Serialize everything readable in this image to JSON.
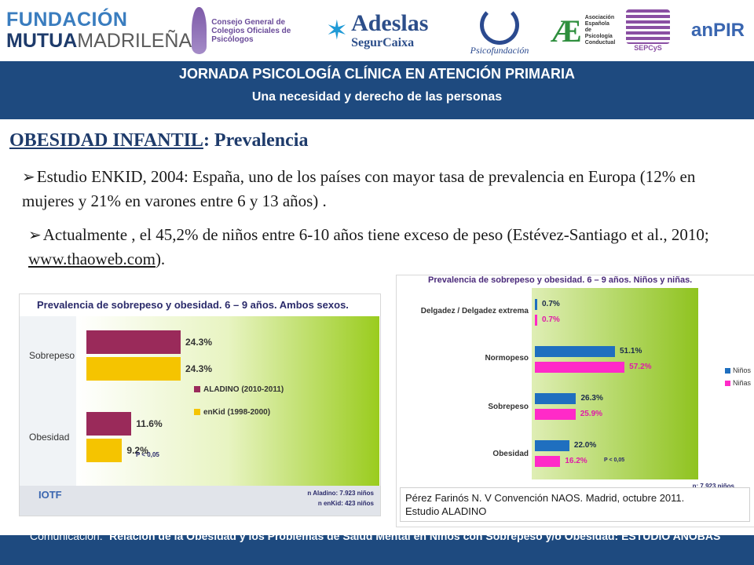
{
  "logos": {
    "fmm_line1": "FUNDACIÓN",
    "fmm_line2a": "MUTUA",
    "fmm_line2b": "MADRILEÑA",
    "cgcop": "Consejo General de Colegios Oficiales de Psicólogos",
    "adeslas_1": "Adeslas",
    "adeslas_2": "SegurCaixa",
    "psico": "Psicofundación",
    "aepc": "Asociación Española de Psicología Conductual",
    "sepcys": "SEPCyS",
    "anpir": "anPIR"
  },
  "header": {
    "title": "JORNADA PSICOLOGÍA CLÍNICA EN ATENCIÓN PRIMARIA",
    "subtitle": "Una necesidad y derecho de las personas"
  },
  "slide": {
    "title_underlined": "OBESIDAD INFANTIL",
    "title_rest": ": Prevalencia",
    "bullet1": "Estudio ENKID, 2004: España, uno de los países con mayor tasa de prevalencia en Europa (12% en mujeres y 21% en varones entre 6 y 13 años) .",
    "bullet2_text": "Actualmente , el 45,2% de niños entre 6-10 años tiene exceso de peso (Estévez-Santiago et al., 2010; ",
    "bullet2_link": "www.thaoweb.com",
    "bullet2_end": ")."
  },
  "chart_data": [
    {
      "type": "bar",
      "title": "Prevalencia de sobrepeso y obesidad. 6 – 9 años. Ambos sexos.",
      "categories": [
        "Sobrepeso",
        "Obesidad"
      ],
      "series": [
        {
          "name": "ALADINO (2010-2011)",
          "values": [
            24.3,
            11.6
          ],
          "labels": [
            "24.3%",
            "11.6%"
          ],
          "color": "#9a2a5a"
        },
        {
          "name": "enKid (1998-2000)",
          "values": [
            24.3,
            9.2
          ],
          "labels": [
            "24.3%",
            "9.2%"
          ],
          "color": "#f5c400"
        }
      ],
      "xlim": [
        0,
        100
      ],
      "annotation": "P < 0,05",
      "footer_label": "IOTF",
      "n_line1": "n Aladino: 7.923 niños",
      "n_line2": "n enKid:     423 niños"
    },
    {
      "type": "bar",
      "title": "Prevalencia de sobrepeso y obesidad. 6 – 9 años. Niños y niñas.",
      "categories": [
        "Delgadez / Delgadez extrema",
        "Normopeso",
        "Sobrepeso",
        "Obesidad"
      ],
      "series": [
        {
          "name": "Niños",
          "values": [
            0.7,
            51.1,
            26.3,
            22.0
          ],
          "labels": [
            "0.7%",
            "51.1%",
            "26.3%",
            "22.0%"
          ],
          "color": "#1f6fbf"
        },
        {
          "name": "Niñas",
          "values": [
            0.7,
            57.2,
            25.9,
            16.2
          ],
          "labels": [
            "0.7%",
            "57.2%",
            "25.9%",
            "16.2%"
          ],
          "color": "#ff2ac8"
        }
      ],
      "xlim": [
        0,
        100
      ],
      "annotation": "P < 0,05",
      "n_line": "n: 7.923 niños",
      "source_line1": "Pérez Farinós N. V Convención NAOS. Madrid, octubre 2011.",
      "source_line2": "Estudio  ALADINO"
    }
  ],
  "footer": {
    "prefix": "Comunicación: “",
    "bold": "Relación de la Obesidad y los Problemas de Salud Mental en Niños con Sobrepeso y/o Obesidad: ESTUDIO ANOBAS",
    "suffix": "”"
  }
}
